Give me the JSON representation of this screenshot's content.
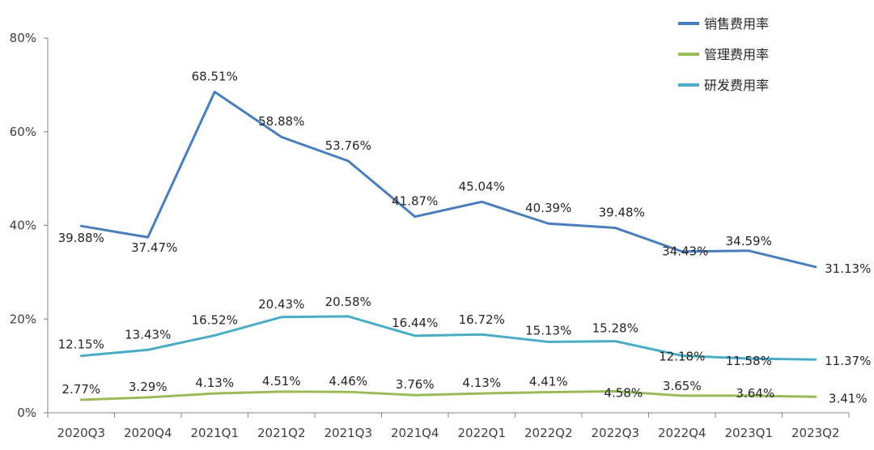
{
  "chart_data": {
    "type": "line",
    "title": "",
    "xlabel": "",
    "ylabel": "",
    "ylim": [
      0,
      80
    ],
    "ytick_labels": [
      "0%",
      "20%",
      "40%",
      "60%",
      "80%"
    ],
    "yticks": [
      0,
      20,
      40,
      60,
      80
    ],
    "grid": false,
    "legend_position": "top-right",
    "categories": [
      "2020Q3",
      "2020Q4",
      "2021Q1",
      "2021Q2",
      "2021Q3",
      "2021Q4",
      "2022Q1",
      "2022Q2",
      "2022Q3",
      "2022Q4",
      "2023Q1",
      "2023Q2"
    ],
    "series": [
      {
        "name": "销售费用率",
        "color": "#4a7ebb",
        "values": [
          39.88,
          37.47,
          68.51,
          58.88,
          53.76,
          41.87,
          45.04,
          40.39,
          39.48,
          34.43,
          34.59,
          31.13
        ],
        "labels": [
          "39.88%",
          "37.47%",
          "68.51%",
          "58.88%",
          "53.76%",
          "41.87%",
          "45.04%",
          "40.39%",
          "39.48%",
          "34.43%",
          "34.59%",
          "31.13%"
        ]
      },
      {
        "name": "管理费用率",
        "color": "#9bbb59",
        "values": [
          2.77,
          3.29,
          4.13,
          4.51,
          4.46,
          3.76,
          4.13,
          4.41,
          4.58,
          3.65,
          3.64,
          3.41
        ],
        "labels": [
          "2.77%",
          "3.29%",
          "4.13%",
          "4.51%",
          "4.46%",
          "3.76%",
          "4.13%",
          "4.41%",
          "4.58%",
          "3.65%",
          "3.64%",
          "3.41%"
        ]
      },
      {
        "name": "研发费用率",
        "color": "#4bacc6",
        "values": [
          12.15,
          13.43,
          16.52,
          20.43,
          20.58,
          16.44,
          16.72,
          15.13,
          15.28,
          12.18,
          11.58,
          11.37
        ],
        "labels": [
          "12.15%",
          "13.43%",
          "16.52%",
          "20.43%",
          "20.58%",
          "16.44%",
          "16.72%",
          "15.13%",
          "15.28%",
          "12.18%",
          "11.58%",
          "11.37%"
        ]
      }
    ]
  }
}
